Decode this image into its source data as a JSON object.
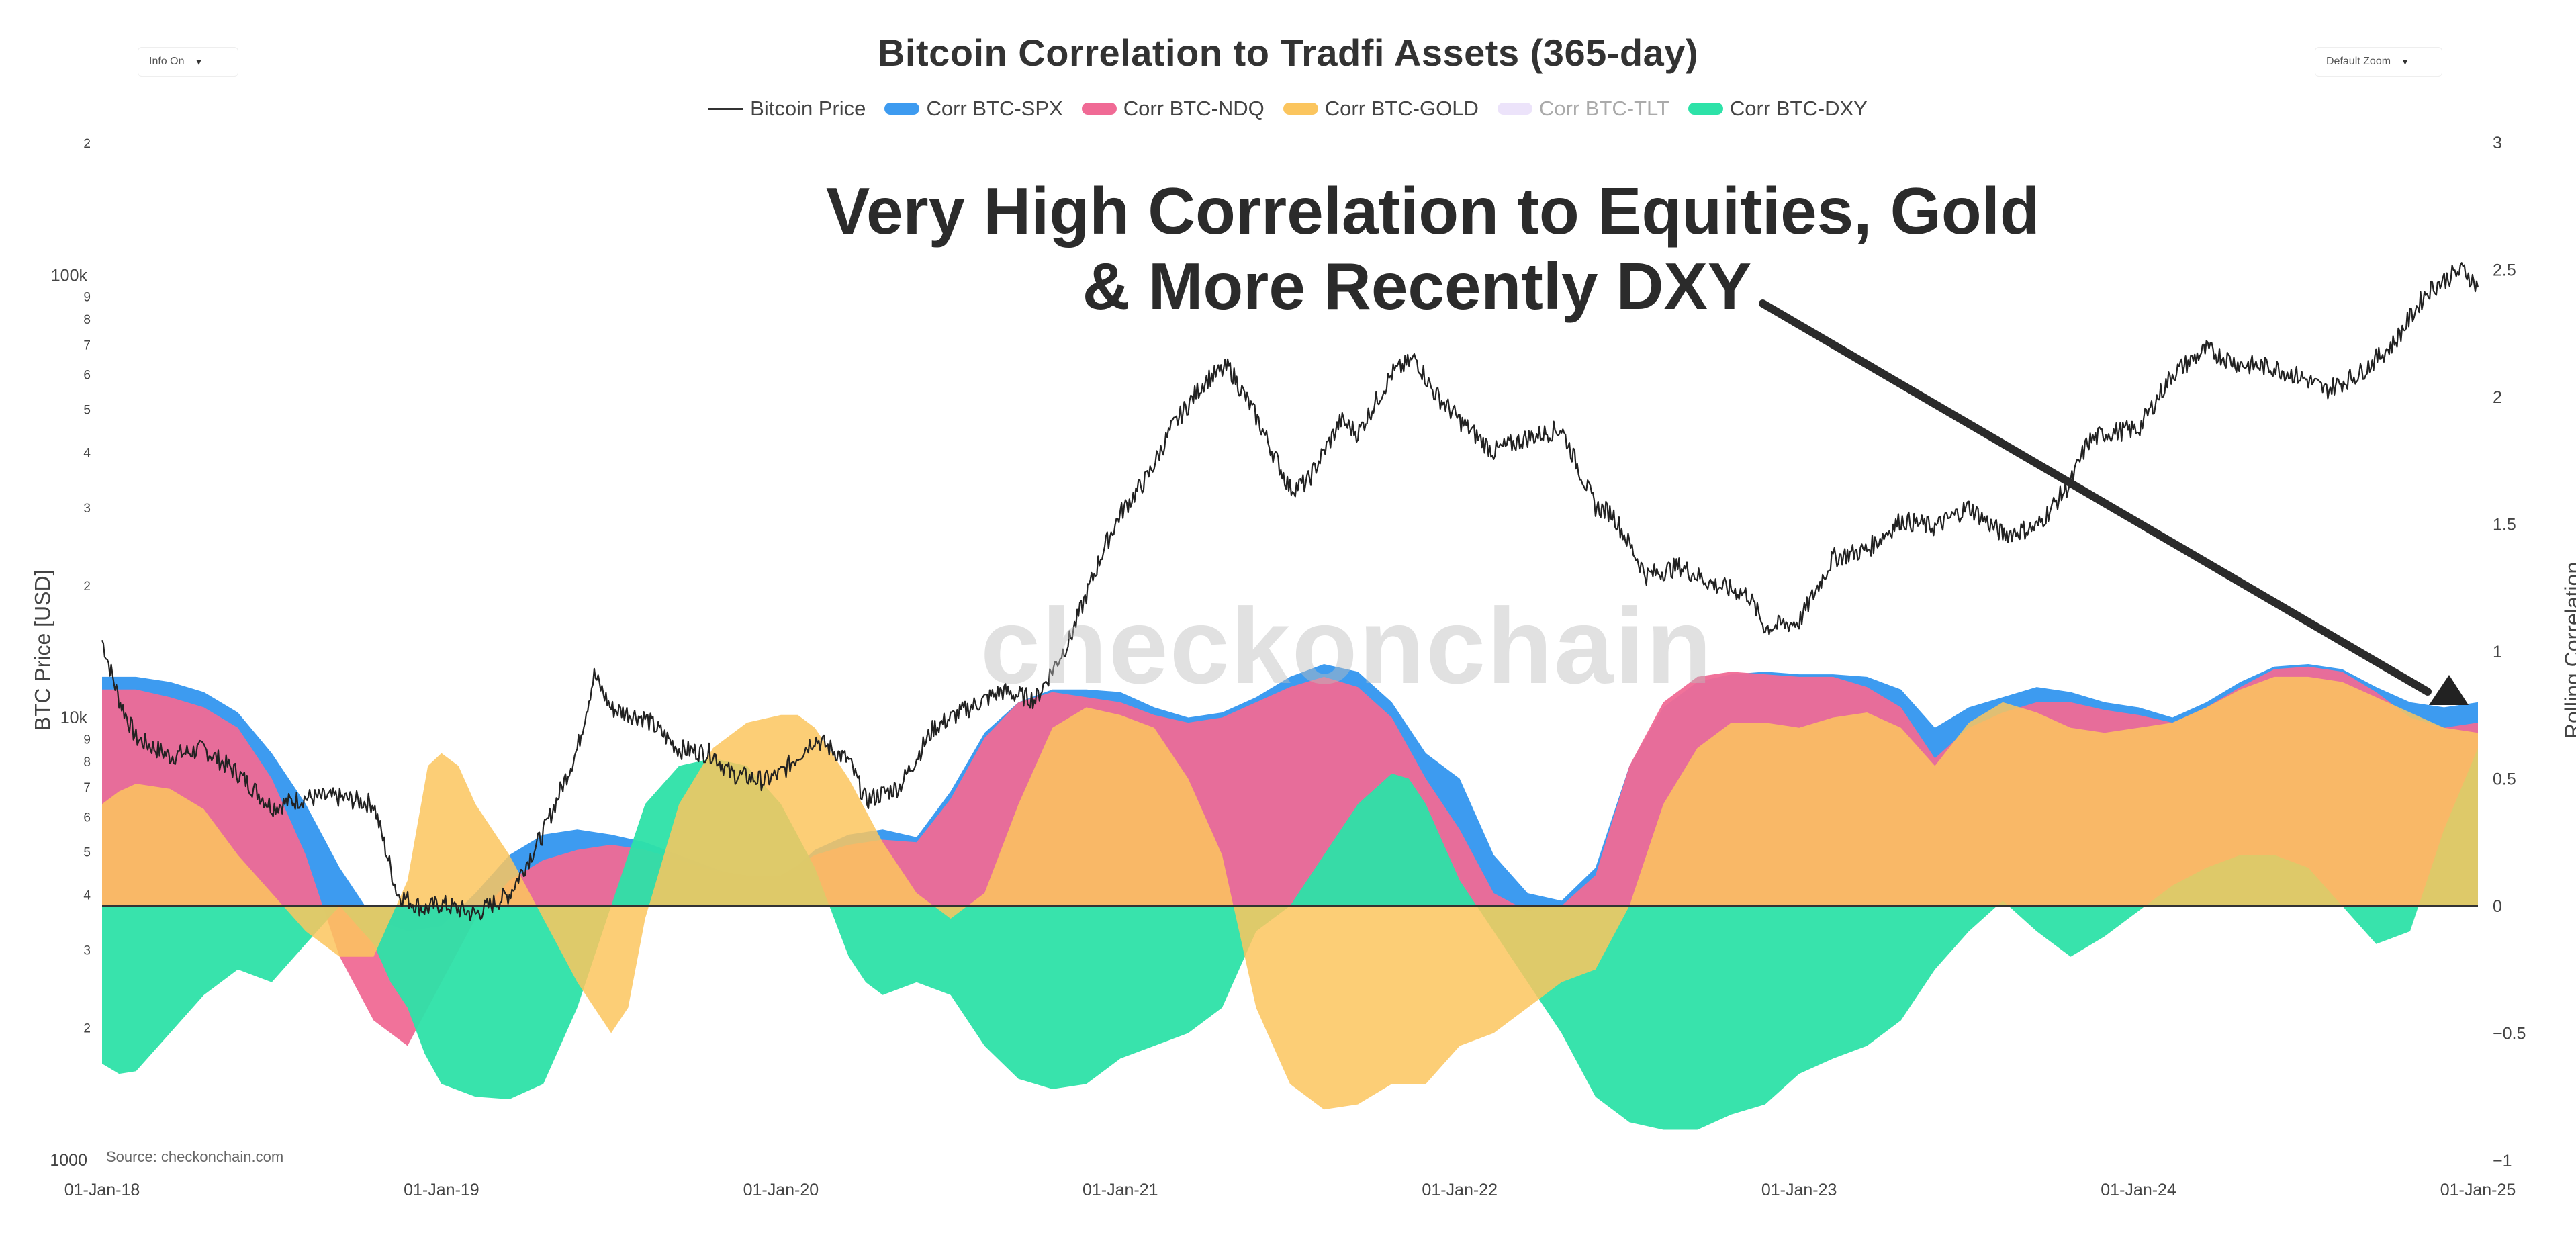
{
  "header": {
    "title": "Bitcoin Correlation to Tradfi Assets (365-day)",
    "info_toggle": "Info On",
    "zoom_select": "Default Zoom"
  },
  "legend": [
    {
      "label": "Bitcoin Price",
      "color": "#333333",
      "kind": "line",
      "visible": true
    },
    {
      "label": "Corr BTC-SPX",
      "color": "#3d9bf0",
      "kind": "area",
      "visible": true
    },
    {
      "label": "Corr BTC-NDQ",
      "color": "#f06a95",
      "kind": "area",
      "visible": true
    },
    {
      "label": "Corr BTC-GOLD",
      "color": "#fbc55e",
      "kind": "area",
      "visible": true
    },
    {
      "label": "Corr BTC-TLT",
      "color": "#d9c8f5",
      "kind": "area",
      "visible": false
    },
    {
      "label": "Corr BTC-DXY",
      "color": "#2de2a8",
      "kind": "area",
      "visible": true
    }
  ],
  "annotation": {
    "line1": "Very High Correlation to Equities, Gold",
    "line2": "& More Recently DXY"
  },
  "watermark": "checkonchain",
  "source": "Source: checkonchain.com",
  "chart_data": {
    "type": "area",
    "title": "Bitcoin Correlation to Tradfi Assets (365-day)",
    "xlabel": "",
    "ylabel_left": "BTC Price [USD]",
    "ylabel_right": "Rolling Correlation",
    "x_ticks": [
      "01-Jan-18",
      "01-Jan-19",
      "01-Jan-20",
      "01-Jan-21",
      "01-Jan-22",
      "01-Jan-23",
      "01-Jan-24",
      "01-Jan-25"
    ],
    "x_range": [
      "2018-01-01",
      "2025-01-01"
    ],
    "y_left": {
      "scale": "log",
      "range": [
        1000,
        200000
      ],
      "tick_labels": [
        {
          "v": 1000,
          "t": "1000"
        },
        {
          "v": 2000,
          "t": "2"
        },
        {
          "v": 3000,
          "t": "3"
        },
        {
          "v": 4000,
          "t": "4"
        },
        {
          "v": 5000,
          "t": "5"
        },
        {
          "v": 6000,
          "t": "6"
        },
        {
          "v": 7000,
          "t": "7"
        },
        {
          "v": 8000,
          "t": "8"
        },
        {
          "v": 9000,
          "t": "9"
        },
        {
          "v": 10000,
          "t": "10k"
        },
        {
          "v": 20000,
          "t": "2"
        },
        {
          "v": 30000,
          "t": "3"
        },
        {
          "v": 40000,
          "t": "4"
        },
        {
          "v": 50000,
          "t": "5"
        },
        {
          "v": 60000,
          "t": "6"
        },
        {
          "v": 70000,
          "t": "7"
        },
        {
          "v": 80000,
          "t": "8"
        },
        {
          "v": 90000,
          "t": "9"
        },
        {
          "v": 100000,
          "t": "100k"
        },
        {
          "v": 200000,
          "t": "2"
        }
      ]
    },
    "y_right": {
      "scale": "linear",
      "range": [
        -1,
        3
      ],
      "tick_labels": [
        {
          "v": -1,
          "t": "−1"
        },
        {
          "v": -0.5,
          "t": "−0.5"
        },
        {
          "v": 0,
          "t": "0"
        },
        {
          "v": 0.5,
          "t": "0.5"
        },
        {
          "v": 1,
          "t": "1"
        },
        {
          "v": 1.5,
          "t": "1.5"
        },
        {
          "v": 2,
          "t": "2"
        },
        {
          "v": 2.5,
          "t": "2.5"
        },
        {
          "v": 3,
          "t": "3"
        }
      ]
    },
    "series": [
      {
        "name": "Bitcoin Price",
        "axis": "left",
        "color": "#222222",
        "type": "line",
        "x": [
          2018.0,
          2018.05,
          2018.1,
          2018.2,
          2018.3,
          2018.4,
          2018.5,
          2018.6,
          2018.7,
          2018.8,
          2018.87,
          2018.95,
          2019.0,
          2019.1,
          2019.2,
          2019.3,
          2019.4,
          2019.45,
          2019.5,
          2019.6,
          2019.7,
          2019.8,
          2019.85,
          2019.95,
          2020.0,
          2020.1,
          2020.2,
          2020.25,
          2020.35,
          2020.45,
          2020.55,
          2020.65,
          2020.75,
          2020.85,
          2020.95,
          2021.0,
          2021.08,
          2021.15,
          2021.25,
          2021.32,
          2021.4,
          2021.5,
          2021.55,
          2021.65,
          2021.7,
          2021.8,
          2021.87,
          2021.92,
          2022.0,
          2022.1,
          2022.2,
          2022.3,
          2022.4,
          2022.45,
          2022.55,
          2022.65,
          2022.75,
          2022.85,
          2022.9,
          2023.0,
          2023.1,
          2023.2,
          2023.3,
          2023.4,
          2023.5,
          2023.6,
          2023.7,
          2023.8,
          2023.85,
          2023.9,
          2024.0,
          2024.1,
          2024.2,
          2024.3,
          2024.4,
          2024.5,
          2024.55,
          2024.65,
          2024.75,
          2024.85,
          2024.92,
          2024.96,
          2025.0
        ],
        "y": [
          15000,
          11000,
          9000,
          8200,
          8500,
          7500,
          6300,
          6600,
          6600,
          6400,
          4000,
          3700,
          3800,
          3600,
          4000,
          5500,
          8500,
          12500,
          10500,
          10000,
          8500,
          8300,
          7500,
          7200,
          7500,
          9000,
          8000,
          6500,
          7000,
          9500,
          10500,
          11500,
          11000,
          15000,
          24000,
          29000,
          35000,
          45000,
          58000,
          62000,
          48000,
          33000,
          34000,
          47000,
          44000,
          60000,
          65000,
          55000,
          47000,
          40000,
          43000,
          45000,
          30000,
          29000,
          21000,
          22000,
          20000,
          19000,
          16000,
          16500,
          23000,
          24000,
          28000,
          27000,
          30000,
          26000,
          27000,
          34000,
          42000,
          44000,
          45000,
          60000,
          68000,
          63000,
          62000,
          58000,
          55000,
          60000,
          70000,
          92000,
          100000,
          103000,
          94000
        ]
      },
      {
        "name": "Corr BTC-SPX",
        "axis": "right",
        "color": "#3d9bf0",
        "type": "area",
        "x": [
          2018.0,
          2018.1,
          2018.2,
          2018.3,
          2018.4,
          2018.5,
          2018.6,
          2018.7,
          2018.8,
          2018.9,
          2019.0,
          2019.1,
          2019.2,
          2019.3,
          2019.4,
          2019.5,
          2019.6,
          2019.7,
          2019.8,
          2019.9,
          2020.0,
          2020.1,
          2020.2,
          2020.3,
          2020.4,
          2020.5,
          2020.6,
          2020.7,
          2020.8,
          2020.9,
          2021.0,
          2021.1,
          2021.2,
          2021.3,
          2021.4,
          2021.5,
          2021.6,
          2021.7,
          2021.8,
          2021.9,
          2022.0,
          2022.1,
          2022.2,
          2022.3,
          2022.4,
          2022.5,
          2022.6,
          2022.7,
          2022.8,
          2022.9,
          2023.0,
          2023.1,
          2023.2,
          2023.3,
          2023.4,
          2023.5,
          2023.6,
          2023.7,
          2023.8,
          2023.9,
          2024.0,
          2024.1,
          2024.2,
          2024.3,
          2024.4,
          2024.5,
          2024.6,
          2024.7,
          2024.8,
          2024.9,
          2025.0
        ],
        "y": [
          0.9,
          0.9,
          0.88,
          0.84,
          0.76,
          0.6,
          0.4,
          0.15,
          -0.05,
          -0.1,
          -0.08,
          0.05,
          0.2,
          0.28,
          0.3,
          0.28,
          0.25,
          0.2,
          0.15,
          0.1,
          0.1,
          0.22,
          0.28,
          0.3,
          0.27,
          0.45,
          0.68,
          0.8,
          0.85,
          0.85,
          0.84,
          0.78,
          0.74,
          0.76,
          0.82,
          0.9,
          0.95,
          0.92,
          0.8,
          0.6,
          0.5,
          0.2,
          0.05,
          0.02,
          0.15,
          0.55,
          0.78,
          0.88,
          0.91,
          0.92,
          0.91,
          0.91,
          0.9,
          0.85,
          0.7,
          0.78,
          0.82,
          0.86,
          0.84,
          0.8,
          0.78,
          0.74,
          0.8,
          0.88,
          0.94,
          0.95,
          0.93,
          0.86,
          0.8,
          0.78,
          0.8
        ]
      },
      {
        "name": "Corr BTC-NDQ",
        "axis": "right",
        "color": "#f06a95",
        "type": "area",
        "x": [
          2018.0,
          2018.1,
          2018.2,
          2018.3,
          2018.4,
          2018.5,
          2018.6,
          2018.7,
          2018.8,
          2018.9,
          2019.0,
          2019.1,
          2019.2,
          2019.3,
          2019.4,
          2019.5,
          2019.6,
          2019.7,
          2019.8,
          2019.9,
          2020.0,
          2020.1,
          2020.2,
          2020.3,
          2020.4,
          2020.5,
          2020.6,
          2020.7,
          2020.8,
          2020.9,
          2021.0,
          2021.1,
          2021.2,
          2021.3,
          2021.4,
          2021.5,
          2021.6,
          2021.7,
          2021.8,
          2021.9,
          2022.0,
          2022.1,
          2022.2,
          2022.3,
          2022.4,
          2022.5,
          2022.6,
          2022.7,
          2022.8,
          2022.9,
          2023.0,
          2023.1,
          2023.2,
          2023.3,
          2023.4,
          2023.5,
          2023.6,
          2023.7,
          2023.8,
          2023.9,
          2024.0,
          2024.1,
          2024.2,
          2024.3,
          2024.4,
          2024.5,
          2024.6,
          2024.7,
          2024.8,
          2024.9,
          2025.0
        ],
        "y": [
          0.85,
          0.85,
          0.82,
          0.78,
          0.7,
          0.5,
          0.2,
          -0.2,
          -0.45,
          -0.55,
          -0.3,
          -0.05,
          0.1,
          0.18,
          0.22,
          0.24,
          0.22,
          0.18,
          0.14,
          0.12,
          0.12,
          0.2,
          0.24,
          0.26,
          0.25,
          0.42,
          0.66,
          0.8,
          0.84,
          0.82,
          0.8,
          0.75,
          0.72,
          0.74,
          0.8,
          0.86,
          0.9,
          0.86,
          0.74,
          0.5,
          0.3,
          0.05,
          -0.02,
          0.0,
          0.12,
          0.55,
          0.8,
          0.9,
          0.92,
          0.91,
          0.9,
          0.9,
          0.86,
          0.78,
          0.58,
          0.7,
          0.76,
          0.8,
          0.8,
          0.77,
          0.75,
          0.72,
          0.78,
          0.86,
          0.93,
          0.94,
          0.92,
          0.84,
          0.74,
          0.7,
          0.72
        ]
      },
      {
        "name": "Corr BTC-GOLD",
        "axis": "right",
        "color": "#fbc55e",
        "type": "area",
        "x": [
          2018.0,
          2018.05,
          2018.1,
          2018.2,
          2018.3,
          2018.4,
          2018.5,
          2018.6,
          2018.7,
          2018.8,
          2018.9,
          2018.96,
          2019.0,
          2019.05,
          2019.1,
          2019.2,
          2019.3,
          2019.4,
          2019.5,
          2019.55,
          2019.6,
          2019.7,
          2019.8,
          2019.9,
          2020.0,
          2020.05,
          2020.1,
          2020.2,
          2020.3,
          2020.4,
          2020.5,
          2020.6,
          2020.7,
          2020.8,
          2020.9,
          2021.0,
          2021.1,
          2021.2,
          2021.3,
          2021.4,
          2021.5,
          2021.6,
          2021.7,
          2021.8,
          2021.9,
          2022.0,
          2022.1,
          2022.2,
          2022.3,
          2022.4,
          2022.5,
          2022.6,
          2022.7,
          2022.8,
          2022.9,
          2023.0,
          2023.1,
          2023.2,
          2023.3,
          2023.4,
          2023.5,
          2023.6,
          2023.7,
          2023.8,
          2023.9,
          2024.0,
          2024.1,
          2024.2,
          2024.3,
          2024.4,
          2024.5,
          2024.6,
          2024.7,
          2024.8,
          2024.9,
          2025.0
        ],
        "y": [
          0.4,
          0.45,
          0.48,
          0.46,
          0.38,
          0.2,
          0.05,
          -0.1,
          -0.2,
          -0.2,
          0.1,
          0.55,
          0.6,
          0.55,
          0.4,
          0.2,
          -0.05,
          -0.3,
          -0.5,
          -0.4,
          -0.05,
          0.4,
          0.62,
          0.72,
          0.75,
          0.75,
          0.7,
          0.5,
          0.25,
          0.05,
          -0.05,
          0.05,
          0.4,
          0.7,
          0.78,
          0.75,
          0.7,
          0.5,
          0.2,
          -0.4,
          -0.7,
          -0.8,
          -0.78,
          -0.7,
          -0.7,
          -0.55,
          -0.5,
          -0.4,
          -0.3,
          -0.25,
          0.0,
          0.4,
          0.62,
          0.72,
          0.72,
          0.7,
          0.74,
          0.76,
          0.7,
          0.55,
          0.72,
          0.8,
          0.76,
          0.7,
          0.68,
          0.7,
          0.72,
          0.78,
          0.85,
          0.9,
          0.9,
          0.88,
          0.82,
          0.76,
          0.7,
          0.68
        ]
      },
      {
        "name": "Corr BTC-DXY",
        "axis": "right",
        "color": "#2de2a8",
        "type": "area",
        "x": [
          2018.0,
          2018.05,
          2018.1,
          2018.2,
          2018.3,
          2018.4,
          2018.5,
          2018.6,
          2018.7,
          2018.8,
          2018.85,
          2018.9,
          2018.95,
          2019.0,
          2019.1,
          2019.2,
          2019.3,
          2019.4,
          2019.45,
          2019.5,
          2019.55,
          2019.6,
          2019.7,
          2019.8,
          2019.9,
          2020.0,
          2020.1,
          2020.2,
          2020.25,
          2020.3,
          2020.4,
          2020.5,
          2020.6,
          2020.7,
          2020.8,
          2020.9,
          2021.0,
          2021.1,
          2021.2,
          2021.3,
          2021.4,
          2021.5,
          2021.6,
          2021.7,
          2021.8,
          2021.85,
          2021.9,
          2022.0,
          2022.1,
          2022.2,
          2022.3,
          2022.4,
          2022.5,
          2022.6,
          2022.7,
          2022.8,
          2022.9,
          2023.0,
          2023.1,
          2023.2,
          2023.3,
          2023.4,
          2023.5,
          2023.6,
          2023.7,
          2023.8,
          2023.9,
          2024.0,
          2024.1,
          2024.2,
          2024.3,
          2024.4,
          2024.5,
          2024.6,
          2024.7,
          2024.8,
          2024.9,
          2025.0
        ],
        "y": [
          -0.62,
          -0.66,
          -0.65,
          -0.5,
          -0.35,
          -0.25,
          -0.3,
          -0.15,
          0.0,
          -0.15,
          -0.3,
          -0.4,
          -0.58,
          -0.7,
          -0.75,
          -0.76,
          -0.7,
          -0.4,
          -0.2,
          0.0,
          0.2,
          0.4,
          0.55,
          0.58,
          0.55,
          0.4,
          0.15,
          -0.2,
          -0.3,
          -0.35,
          -0.3,
          -0.35,
          -0.55,
          -0.68,
          -0.72,
          -0.7,
          -0.6,
          -0.55,
          -0.5,
          -0.4,
          -0.1,
          0.0,
          0.2,
          0.4,
          0.52,
          0.5,
          0.4,
          0.1,
          -0.1,
          -0.3,
          -0.5,
          -0.75,
          -0.85,
          -0.88,
          -0.88,
          -0.82,
          -0.78,
          -0.66,
          -0.6,
          -0.55,
          -0.45,
          -0.25,
          -0.1,
          0.02,
          -0.1,
          -0.2,
          -0.12,
          -0.02,
          0.08,
          0.15,
          0.2,
          0.2,
          0.15,
          0.0,
          -0.15,
          -0.1,
          0.3,
          0.62
        ]
      }
    ],
    "grid": false,
    "legend_position": "top-center"
  }
}
